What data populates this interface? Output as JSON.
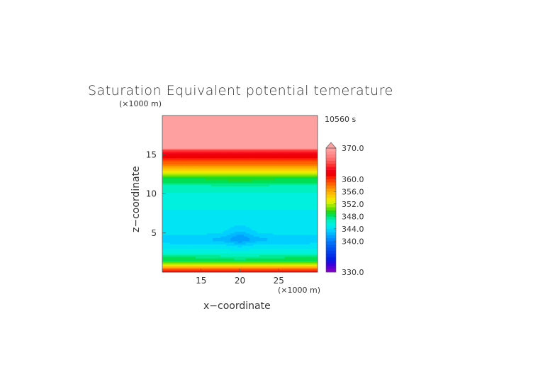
{
  "chart_data": {
    "type": "heatmap",
    "title": "Saturation Equivalent potential temerature",
    "xlabel": "x−coordinate",
    "ylabel": "z−coordinate",
    "x_unit": "(×1000 m)",
    "y_unit": "(×1000 m)",
    "time_label": "10560 s",
    "xlim": [
      10,
      30
    ],
    "ylim": [
      0,
      20
    ],
    "x_ticks": [
      15,
      20,
      25
    ],
    "y_ticks": [
      5,
      10,
      15
    ],
    "colorbar": {
      "min": 330,
      "max": 370,
      "tick_labels": [
        "370.0",
        "360.0",
        "356.0",
        "352.0",
        "348.0",
        "344.0",
        "340.0",
        "330.0"
      ],
      "tick_values": [
        370,
        360,
        356,
        352,
        348,
        344,
        340,
        330
      ],
      "levels": [
        330,
        331,
        332,
        333,
        334,
        335,
        336,
        337,
        338,
        339,
        340,
        341,
        342,
        343,
        344,
        345,
        346,
        347,
        348,
        349,
        350,
        351,
        352,
        353,
        354,
        355,
        356,
        357,
        358,
        359,
        360,
        361,
        362,
        363,
        364,
        365,
        366,
        367,
        368,
        369,
        370
      ],
      "colors": [
        "#7a00c8",
        "#5a00d2",
        "#3a00dc",
        "#1a10e0",
        "#0020e4",
        "#0030e8",
        "#0040ec",
        "#0050f0",
        "#0060f4",
        "#0070f8",
        "#0088ff",
        "#00a0ff",
        "#00b8ff",
        "#00d0ff",
        "#00e4f4",
        "#00f0e0",
        "#00f0c0",
        "#00e890",
        "#00e050",
        "#20d820",
        "#60e000",
        "#a0e800",
        "#d8f000",
        "#f0e800",
        "#f8d000",
        "#ffb800",
        "#ffa000",
        "#ff8000",
        "#ff6000",
        "#ff4000",
        "#ff2000",
        "#f00000",
        "#f00010",
        "#f81020",
        "#ff3030",
        "#ff5050",
        "#ff6a6a",
        "#ff8080",
        "#ff9090",
        "#ffa0a0"
      ],
      "overflow_color": "#ffa0a0"
    },
    "profile_z": [
      0.0,
      0.5,
      1.0,
      1.5,
      2.0,
      2.5,
      3.0,
      4.0,
      5.0,
      6.0,
      7.0,
      8.0,
      9.0,
      10.0,
      11.0,
      11.5,
      12.0,
      12.5,
      13.0,
      13.5,
      14.0,
      14.5,
      15.0,
      15.5,
      16.0,
      20.0
    ],
    "profile_theta": [
      362,
      358,
      352,
      349,
      348,
      346,
      345,
      343.6,
      344.2,
      344.5,
      344.8,
      345.0,
      345.3,
      345.8,
      346.5,
      348.0,
      349.0,
      351.0,
      353.5,
      356.0,
      358.5,
      360.5,
      362.0,
      364.0,
      370.5,
      371
    ]
  }
}
